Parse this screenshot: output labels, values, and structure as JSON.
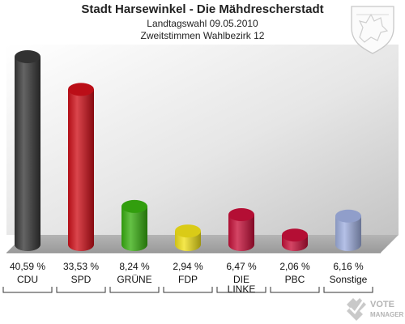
{
  "header": {
    "title": "Stadt Harsewinkel - Die Mähdrescherstadt",
    "subtitle1": "Landtagswahl 09.05.2010",
    "subtitle2": "Zweitstimmen Wahlbezirk 12"
  },
  "logo": {
    "text": [
      "VOTE",
      "MANAGER"
    ],
    "icon": "vote-manager-logo"
  },
  "crest": {
    "icon": "coat-of-arms-icon"
  },
  "chart_data": {
    "type": "bar",
    "categories": [
      "CDU",
      "SPD",
      "GRÜNE",
      "FDP",
      "DIE LINKE",
      "PBC",
      "Sonstige"
    ],
    "values": [
      40.59,
      33.53,
      8.24,
      2.94,
      6.47,
      2.06,
      6.16
    ],
    "value_labels": [
      "40,59 %",
      "33,53 %",
      "8,24 %",
      "2,94 %",
      "6,47 %",
      "2,06 %",
      "6,16 %"
    ],
    "colors": [
      "#383838",
      "#d0101a",
      "#38b010",
      "#f2e21a",
      "#c8103a",
      "#c8103a",
      "#a0b0e0"
    ],
    "ylim": [
      0,
      40.59
    ],
    "grid": false
  }
}
